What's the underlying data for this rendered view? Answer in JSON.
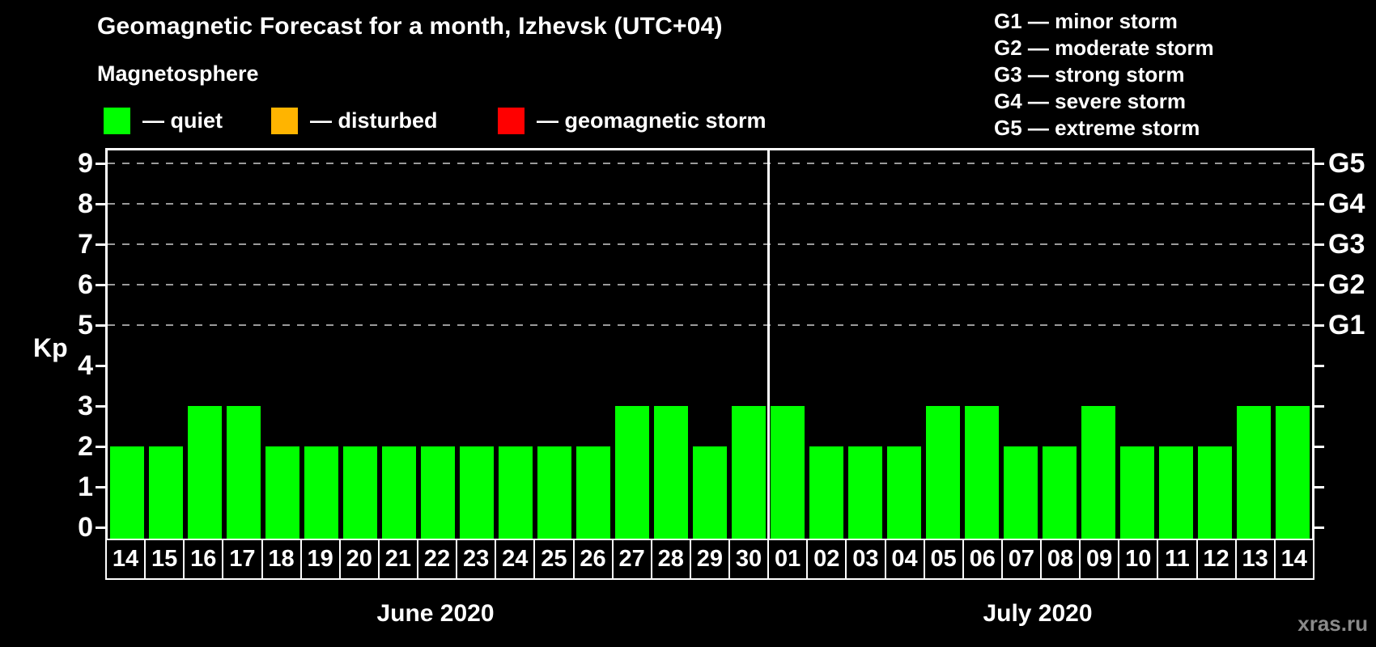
{
  "title": "Geomagnetic Forecast for a month, Izhevsk (UTC+04)",
  "subtitle": "Magnetosphere",
  "condition_legend": {
    "items": [
      {
        "name": "quiet",
        "label": "— quiet",
        "color": "#00ff00"
      },
      {
        "name": "disturbed",
        "label": "— disturbed",
        "color": "#ffb400"
      },
      {
        "name": "storm",
        "label": "— geomagnetic storm",
        "color": "#ff0000"
      }
    ]
  },
  "storm_scale_legend": {
    "items": [
      "G1 — minor storm",
      "G2 — moderate storm",
      "G3 — strong storm",
      "G4 — severe storm",
      "G5 — extreme storm"
    ]
  },
  "watermark": "xras.ru",
  "chart_data": {
    "type": "bar",
    "title": "Geomagnetic Forecast for a month, Izhevsk (UTC+04)",
    "ylabel": "Kp",
    "ylim": [
      0,
      9
    ],
    "y_ticks": [
      0,
      1,
      2,
      3,
      4,
      5,
      6,
      7,
      8,
      9
    ],
    "grid_levels": [
      5,
      6,
      7,
      8,
      9
    ],
    "grid_style": "dashed",
    "legend_position": "top",
    "right_axis_labels": [
      {
        "kp": 5,
        "label": "G1"
      },
      {
        "kp": 6,
        "label": "G2"
      },
      {
        "kp": 7,
        "label": "G3"
      },
      {
        "kp": 8,
        "label": "G4"
      },
      {
        "kp": 9,
        "label": "G5"
      }
    ],
    "bar_color": "#00ff00",
    "bar_status": "quiet",
    "months": [
      {
        "label": "June 2020",
        "days": [
          "14",
          "15",
          "16",
          "17",
          "18",
          "19",
          "20",
          "21",
          "22",
          "23",
          "24",
          "25",
          "26",
          "27",
          "28",
          "29",
          "30"
        ],
        "values": [
          2,
          2,
          3,
          3,
          2,
          2,
          2,
          2,
          2,
          2,
          2,
          2,
          2,
          3,
          3,
          2,
          3
        ]
      },
      {
        "label": "July 2020",
        "days": [
          "01",
          "02",
          "03",
          "04",
          "05",
          "06",
          "07",
          "08",
          "09",
          "10",
          "11",
          "12",
          "13",
          "14"
        ],
        "values": [
          3,
          2,
          2,
          2,
          3,
          3,
          2,
          2,
          3,
          2,
          2,
          2,
          3,
          3
        ]
      }
    ]
  }
}
